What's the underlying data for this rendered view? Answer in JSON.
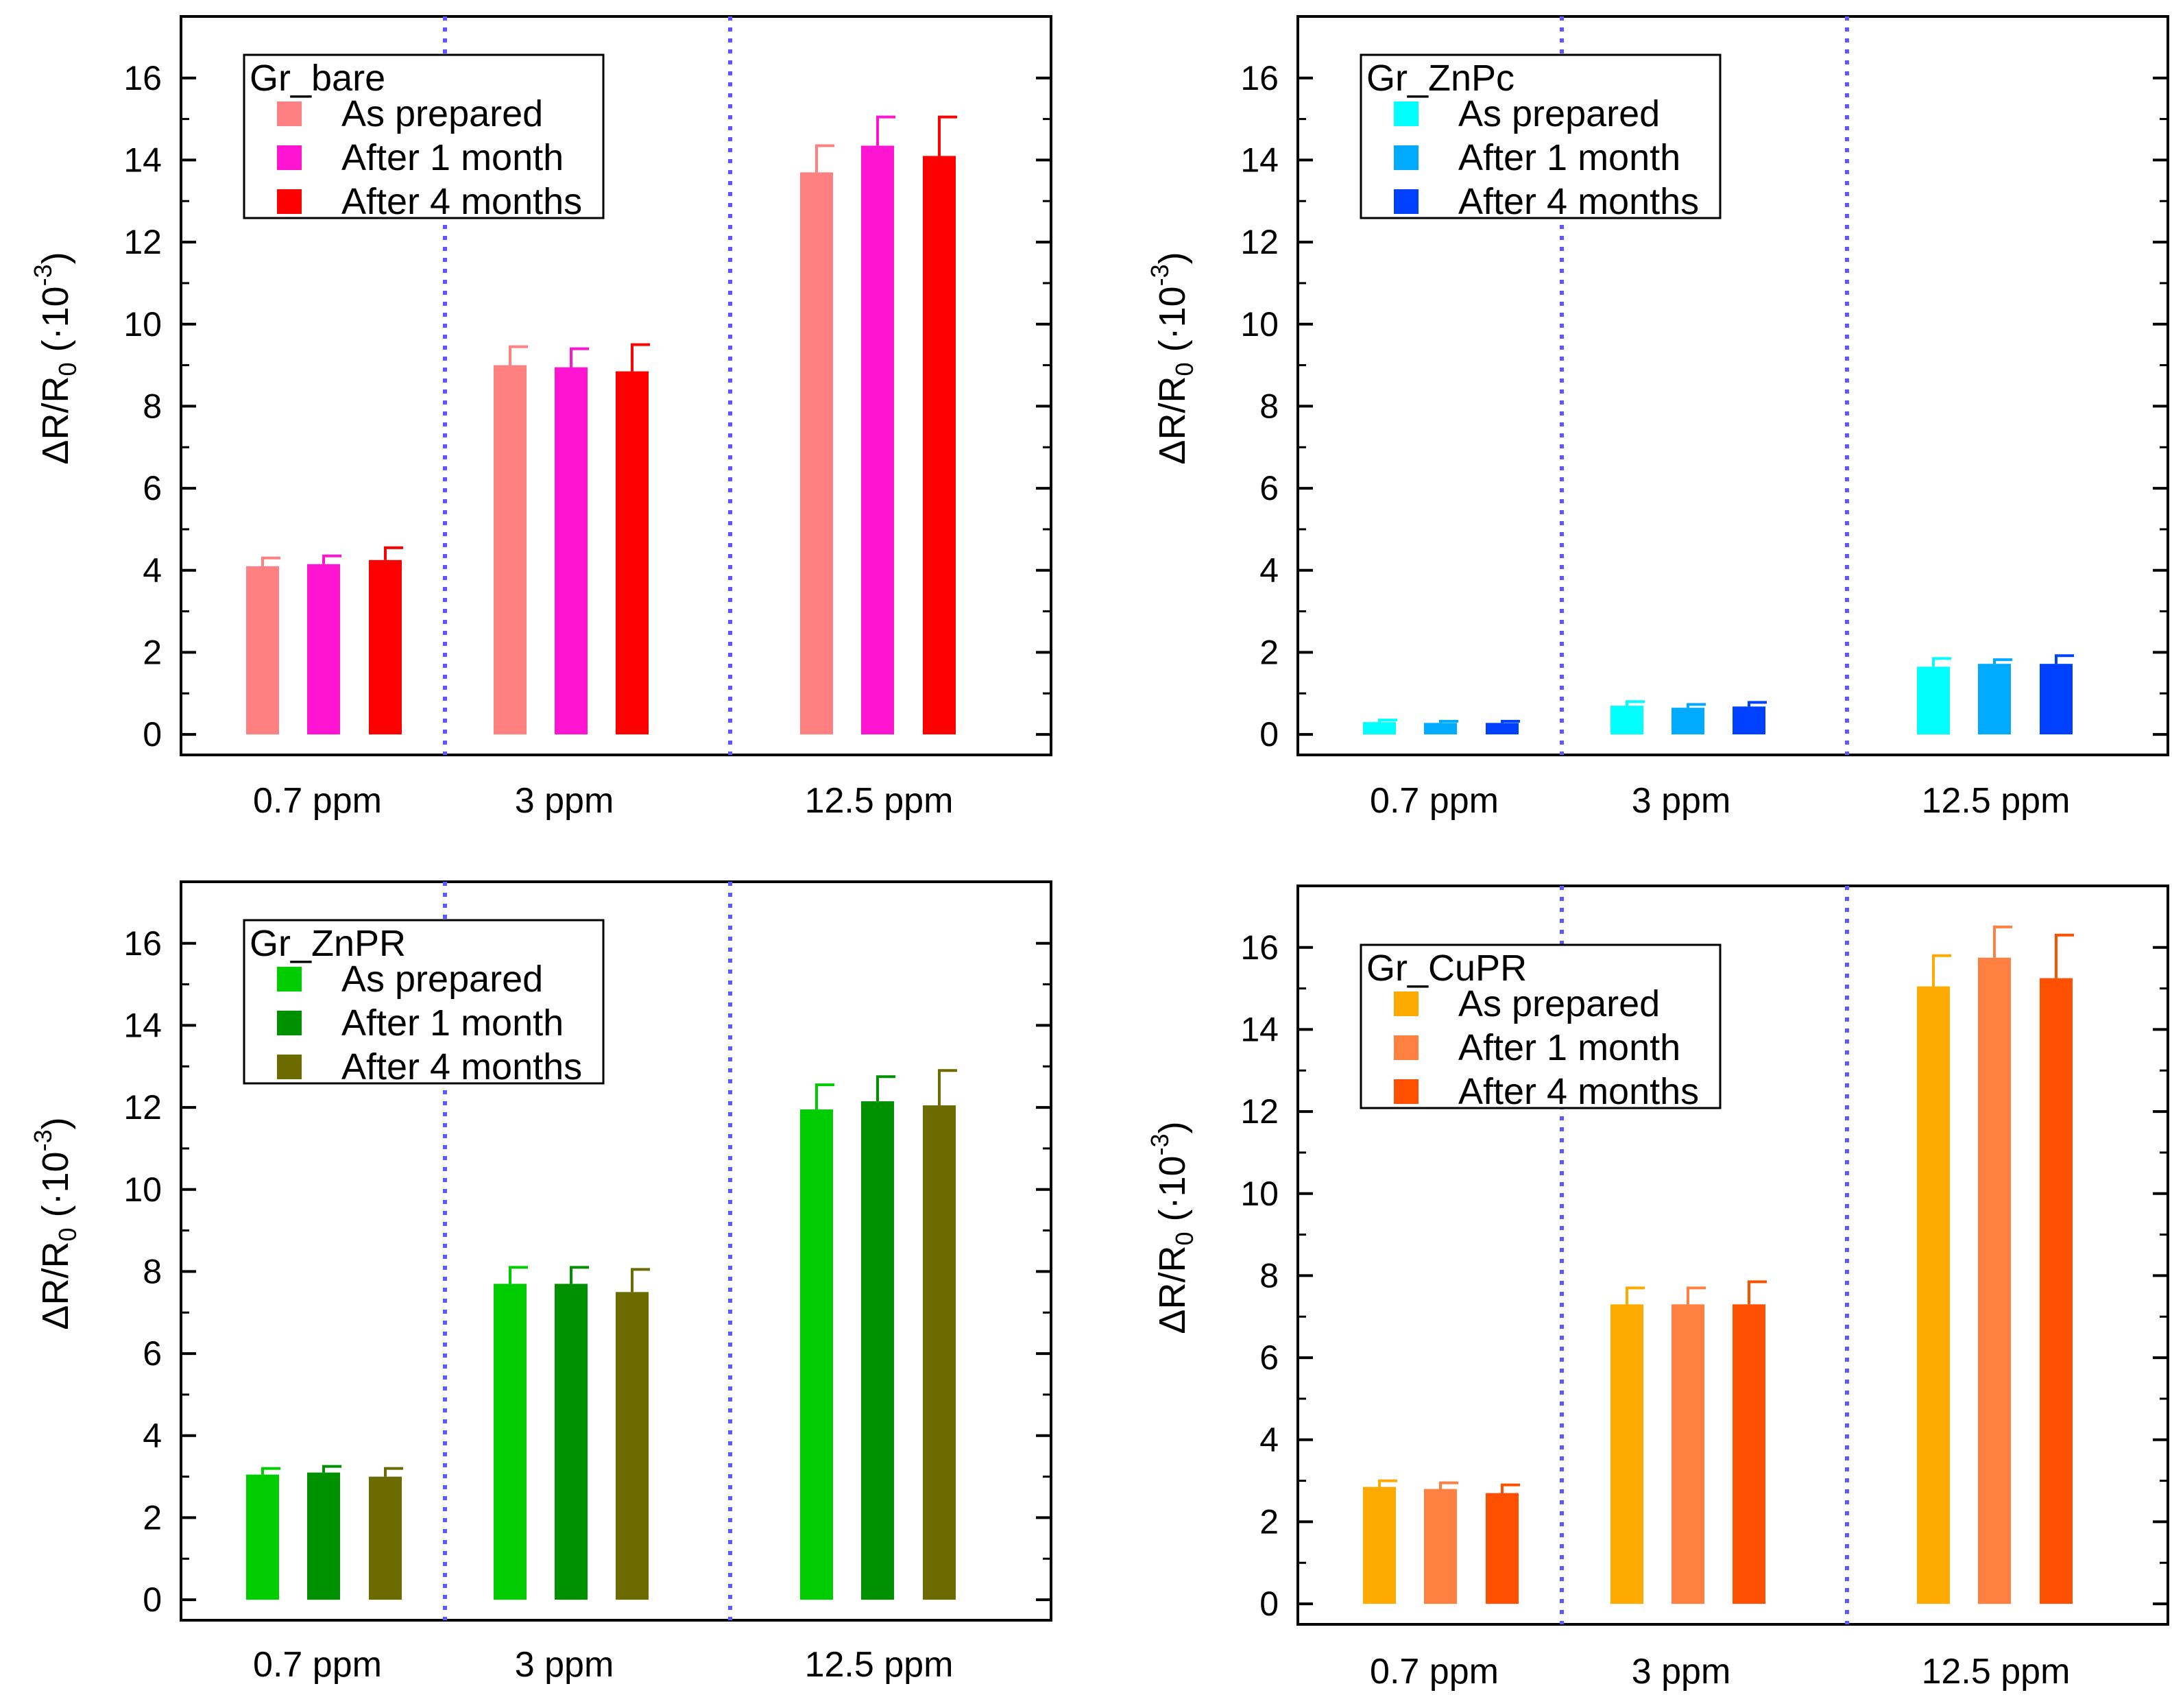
{
  "figure": {
    "y_label": {
      "delta": "ΔR/R",
      "sub": "0",
      "mid": " (·10",
      "sup": "-3",
      "close": ")"
    },
    "colors": {
      "axis": "#000000",
      "divider": "#5a5aff",
      "error_bar_default": "#000000"
    }
  },
  "chart_data": [
    {
      "type": "bar",
      "title": "Gr_bare",
      "legend_title": "Gr_bare",
      "legend_position": "top-left",
      "categories": [
        "0.7 ppm",
        "3 ppm",
        "12.5 ppm"
      ],
      "ylim": [
        -0.5,
        17.5
      ],
      "yticks": [
        0,
        2,
        4,
        6,
        8,
        10,
        12,
        14,
        16
      ],
      "ylabel": "ΔR/R0 (·10-3)",
      "series": [
        {
          "name": "As prepared",
          "color": "#ff8080",
          "values": [
            4.1,
            9.0,
            13.7
          ],
          "errors": [
            0.2,
            0.45,
            0.65
          ]
        },
        {
          "name": "After 1 month",
          "color": "#ff14d2",
          "values": [
            4.15,
            8.95,
            14.35
          ],
          "errors": [
            0.2,
            0.45,
            0.7
          ]
        },
        {
          "name": "After 4 months",
          "color": "#ff0000",
          "values": [
            4.25,
            8.85,
            14.1
          ],
          "errors": [
            0.3,
            0.65,
            0.95
          ]
        }
      ]
    },
    {
      "type": "bar",
      "title": "Gr_ZnPc",
      "legend_title": "Gr_ZnPc",
      "legend_position": "top-left",
      "categories": [
        "0.7 ppm",
        "3 ppm",
        "12.5 ppm"
      ],
      "ylim": [
        -0.5,
        17.5
      ],
      "yticks": [
        0,
        2,
        4,
        6,
        8,
        10,
        12,
        14,
        16
      ],
      "ylabel": "ΔR/R0 (·10-3)",
      "series": [
        {
          "name": "As prepared",
          "color": "#00ffff",
          "values": [
            0.3,
            0.7,
            1.65
          ],
          "errors": [
            0.05,
            0.1,
            0.2
          ]
        },
        {
          "name": "After 1 month",
          "color": "#00aaff",
          "values": [
            0.28,
            0.65,
            1.72
          ],
          "errors": [
            0.04,
            0.08,
            0.1
          ]
        },
        {
          "name": "After 4 months",
          "color": "#0041ff",
          "values": [
            0.28,
            0.68,
            1.72
          ],
          "errors": [
            0.04,
            0.1,
            0.2
          ]
        }
      ]
    },
    {
      "type": "bar",
      "title": "Gr_ZnPR",
      "legend_title": "Gr_ZnPR",
      "legend_position": "top-left",
      "categories": [
        "0.7 ppm",
        "3 ppm",
        "12.5 ppm"
      ],
      "ylim": [
        -0.5,
        17.5
      ],
      "yticks": [
        0,
        2,
        4,
        6,
        8,
        10,
        12,
        14,
        16
      ],
      "ylabel": "ΔR/R0 (·10-3)",
      "series": [
        {
          "name": "As prepared",
          "color": "#00cd00",
          "values": [
            3.05,
            7.7,
            11.95
          ],
          "errors": [
            0.15,
            0.4,
            0.6
          ]
        },
        {
          "name": "After 1 month",
          "color": "#009100",
          "values": [
            3.1,
            7.7,
            12.15
          ],
          "errors": [
            0.15,
            0.4,
            0.6
          ]
        },
        {
          "name": "After 4 months",
          "color": "#6b6b00",
          "values": [
            3.0,
            7.5,
            12.05
          ],
          "errors": [
            0.2,
            0.55,
            0.85
          ]
        }
      ]
    },
    {
      "type": "bar",
      "title": "Gr_CuPR",
      "legend_title": "Gr_CuPR",
      "legend_position": "top-left",
      "categories": [
        "0.7 ppm",
        "3 ppm",
        "12.5 ppm"
      ],
      "ylim": [
        -0.5,
        17.5
      ],
      "yticks": [
        0,
        2,
        4,
        6,
        8,
        10,
        12,
        14,
        16
      ],
      "ylabel": "ΔR/R0 (·10-3)",
      "series": [
        {
          "name": "As prepared",
          "color": "#ffaa00",
          "values": [
            2.85,
            7.3,
            15.05
          ],
          "errors": [
            0.15,
            0.4,
            0.75
          ]
        },
        {
          "name": "After 1 month",
          "color": "#ff8040",
          "values": [
            2.8,
            7.3,
            15.75
          ],
          "errors": [
            0.15,
            0.4,
            0.75
          ]
        },
        {
          "name": "After 4 months",
          "color": "#ff5000",
          "values": [
            2.7,
            7.3,
            15.25
          ],
          "errors": [
            0.2,
            0.55,
            1.05
          ]
        }
      ]
    }
  ]
}
